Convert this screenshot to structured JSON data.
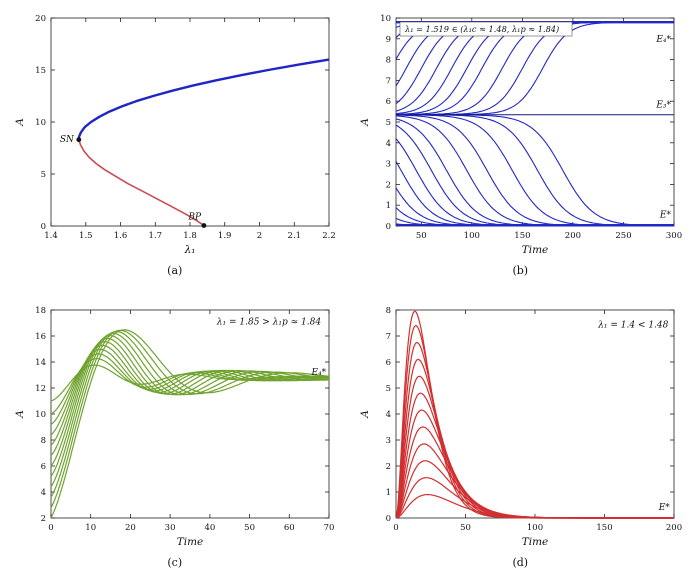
{
  "figure": {
    "background": "#ffffff",
    "panels": [
      {
        "caption": "(a)"
      },
      {
        "caption": "(b)"
      },
      {
        "caption": "(c)"
      },
      {
        "caption": "(d)"
      }
    ]
  },
  "chart_data": [
    {
      "type": "line",
      "title": "bifurcation diagram",
      "xlabel": "λ₁",
      "ylabel": "A",
      "xlim": [
        1.4,
        2.2
      ],
      "ylim": [
        0,
        20
      ],
      "xticks": [
        1.4,
        1.5,
        1.6,
        1.7,
        1.8,
        1.9,
        2,
        2.1,
        2.2
      ],
      "yticks": [
        0,
        5,
        10,
        15,
        20
      ],
      "grid": false,
      "series": [
        {
          "name": "stable-upper-branch",
          "color": "#2125c8",
          "width": 2.4,
          "points": [
            [
              1.48,
              8.3
            ],
            [
              1.481,
              8.6
            ],
            [
              1.486,
              9.0
            ],
            [
              1.497,
              9.5
            ],
            [
              1.515,
              10.0
            ],
            [
              1.539,
              10.5
            ],
            [
              1.568,
              11.0
            ],
            [
              1.604,
              11.5
            ],
            [
              1.645,
              12.0
            ],
            [
              1.694,
              12.5
            ],
            [
              1.748,
              13.0
            ],
            [
              1.808,
              13.5
            ],
            [
              1.874,
              14.0
            ],
            [
              1.947,
              14.5
            ],
            [
              2.025,
              15.0
            ],
            [
              2.109,
              15.5
            ],
            [
              2.2,
              16.0
            ]
          ]
        },
        {
          "name": "unstable-lower-branch",
          "color": "#cf4a52",
          "width": 1.6,
          "points": [
            [
              1.48,
              8.3
            ],
            [
              1.485,
              7.8
            ],
            [
              1.495,
              7.2
            ],
            [
              1.51,
              6.6
            ],
            [
              1.53,
              6.0
            ],
            [
              1.555,
              5.4
            ],
            [
              1.585,
              4.8
            ],
            [
              1.62,
              4.1
            ],
            [
              1.66,
              3.4
            ],
            [
              1.7,
              2.7
            ],
            [
              1.745,
              1.9
            ],
            [
              1.79,
              1.1
            ],
            [
              1.82,
              0.5
            ],
            [
              1.84,
              0.05
            ]
          ]
        }
      ],
      "markers": [
        {
          "x": 1.48,
          "y": 8.3,
          "label": "SN"
        },
        {
          "x": 1.84,
          "y": 0.05,
          "label": "BP"
        }
      ],
      "annotations": [
        {
          "text": "SN",
          "x": 1.466,
          "y": 8.35,
          "anchor": "end"
        },
        {
          "text": "BP",
          "x": 1.832,
          "y": 0.9,
          "anchor": "end"
        }
      ]
    },
    {
      "type": "line",
      "title": "λ₁ = 1.519 ∈ (λ₁c ≈ 1.48, λ₁p ≈ 1.84)",
      "xlabel": "Time",
      "ylabel": "A",
      "xlim": [
        25,
        300
      ],
      "ylim": [
        0,
        10
      ],
      "xticks": [
        50,
        100,
        150,
        200,
        250,
        300
      ],
      "yticks": [
        0,
        1,
        2,
        3,
        4,
        5,
        6,
        7,
        8,
        9,
        10
      ],
      "grid": false,
      "equilibria": {
        "E4_star": 9.8,
        "E3_star": 5.35,
        "E_star": 0
      },
      "series": [
        {
          "name": "upper-basin-trajectories",
          "color": "#2228c4",
          "width": 1.1,
          "gen": "rise",
          "base": 5.35,
          "top": 9.8,
          "r": 0.08,
          "t0": 25,
          "t1": 300,
          "dt": 1.5,
          "tms": [
            -10,
            5,
            20,
            35,
            50,
            65,
            80,
            95,
            110,
            130,
            150,
            170
          ]
        },
        {
          "name": "lower-basin-trajectories",
          "color": "#2228c4",
          "width": 1.1,
          "gen": "fall",
          "top": 5.35,
          "r": 0.065,
          "t0": 25,
          "t1": 300,
          "dt": 1.5,
          "tms": [
            -35,
            -15,
            0,
            15,
            30,
            45,
            60,
            75,
            95,
            115,
            140,
            165,
            190
          ]
        },
        {
          "name": "E4-equilibrium-line",
          "color": "#2228c4",
          "width": 2.3,
          "gen": "hline",
          "y": 9.8
        },
        {
          "name": "E3-equilibrium-line",
          "color": "#141a78",
          "width": 1.0,
          "gen": "hline",
          "y": 5.35
        },
        {
          "name": "E0-equilibrium-line",
          "color": "#2228c4",
          "width": 2.0,
          "gen": "hline",
          "y": 0.05
        }
      ],
      "annotations": [
        {
          "text": "λ₁ = 1.519 ∈ (λ₁c ≈ 1.48, λ₁p ≈ 1.84)",
          "box": true,
          "px": 4,
          "py": 4,
          "bw": 172,
          "bh": 14
        },
        {
          "text": "E₄*",
          "x": 297,
          "y": 9.0,
          "anchor": "end"
        },
        {
          "text": "E₃*",
          "x": 297,
          "y": 5.85,
          "anchor": "end"
        },
        {
          "text": "E*",
          "x": 297,
          "y": 0.55,
          "anchor": "end"
        }
      ]
    },
    {
      "type": "line",
      "title": "λ₁ = 1.85 > λ₁p ≈ 1.84",
      "xlabel": "Time",
      "ylabel": "A",
      "xlim": [
        0,
        70
      ],
      "ylim": [
        2,
        18
      ],
      "xticks": [
        0,
        10,
        20,
        30,
        40,
        50,
        60,
        70
      ],
      "yticks": [
        2,
        4,
        6,
        8,
        10,
        12,
        14,
        16,
        18
      ],
      "grid": false,
      "equilibria": {
        "E4_star": 12.8
      },
      "series": [
        {
          "name": "trajectories",
          "color": "#6fa32e",
          "width": 1.2,
          "gen": "damped",
          "eq": 12.8,
          "a": 0.055,
          "w0": 0.125,
          "wk": 0.013,
          "t0": 0,
          "t1": 70,
          "dt": 0.25,
          "y0s": [
            2,
            2.8,
            3.6,
            4.4,
            5.2,
            6,
            6.8,
            7.6,
            8.4,
            9.2,
            10,
            11
          ]
        }
      ],
      "annotations": [
        {
          "text": "λ₁ = 1.85 > λ₁p ≈ 1.84",
          "x": 68,
          "y": 17.1,
          "anchor": "end"
        },
        {
          "text": "E₄*",
          "x": 69.3,
          "y": 13.25,
          "anchor": "end"
        }
      ]
    },
    {
      "type": "line",
      "title": "λ₁ = 1.4 < 1.48",
      "xlabel": "Time",
      "ylabel": "A",
      "xlim": [
        0,
        200
      ],
      "ylim": [
        0,
        8
      ],
      "xticks": [
        0,
        50,
        100,
        150,
        200
      ],
      "yticks": [
        0,
        1,
        2,
        3,
        4,
        5,
        6,
        7,
        8
      ],
      "grid": false,
      "equilibria": {
        "E_star": 0
      },
      "series": [
        {
          "name": "trajectories",
          "color": "#d12f2f",
          "width": 1.2,
          "gen": "pulse",
          "tp0": 13.5,
          "tpk": 1.3,
          "aref": 8,
          "k": 2,
          "t0": 0,
          "t1": 200,
          "dt": 0.5,
          "amps": [
            0.9,
            1.55,
            2.2,
            2.85,
            3.5,
            4.15,
            4.8,
            5.45,
            6.1,
            6.75,
            7.4,
            7.95
          ]
        }
      ],
      "annotations": [
        {
          "text": "λ₁ = 1.4 < 1.48",
          "x": 196,
          "y": 7.45,
          "anchor": "end"
        },
        {
          "text": "E*",
          "x": 197,
          "y": 0.42,
          "anchor": "end"
        }
      ]
    }
  ]
}
